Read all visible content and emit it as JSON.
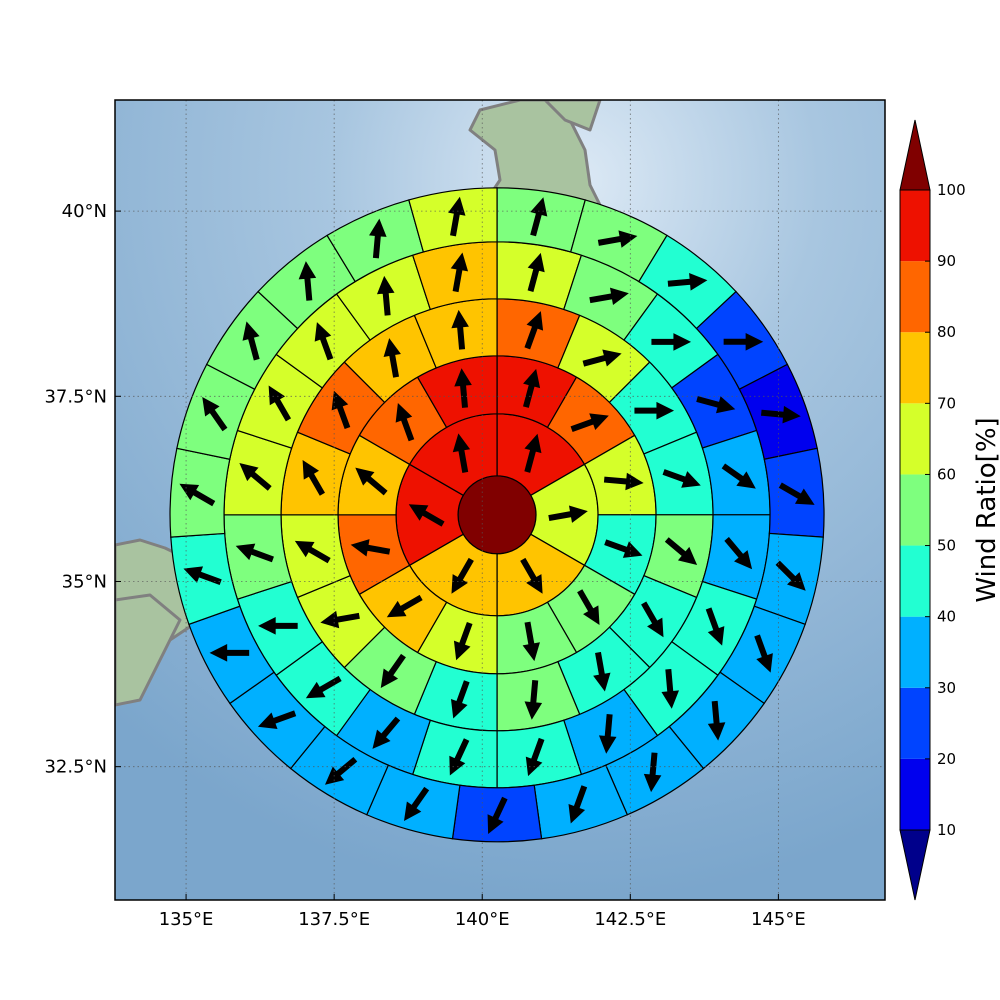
{
  "map": {
    "lon_range": [
      133.8,
      146.8
    ],
    "lat_range": [
      30.7,
      41.5
    ],
    "lon_ticks": [
      {
        "value": 135,
        "label": "135°E"
      },
      {
        "value": 137.5,
        "label": "137.5°E"
      },
      {
        "value": 140,
        "label": "140°E"
      },
      {
        "value": 142.5,
        "label": "142.5°E"
      },
      {
        "value": 145,
        "label": "145°E"
      }
    ],
    "lat_ticks": [
      {
        "value": 40,
        "label": "40°N"
      },
      {
        "value": 37.5,
        "label": "37.5°N"
      },
      {
        "value": 35,
        "label": "35°N"
      },
      {
        "value": 32.5,
        "label": "32.5°N"
      }
    ],
    "grid": true,
    "center": {
      "lon": 140.25,
      "lat": 35.9
    },
    "sea_color": "#8fb4d6",
    "land_color": "#a9c3a0",
    "coast_color": "#808080"
  },
  "colorbar": {
    "title": "Wind Ratio[%]",
    "levels": [
      10,
      20,
      30,
      40,
      50,
      60,
      70,
      80,
      90,
      100
    ],
    "colors": [
      "#0000ee",
      "#0044ff",
      "#00b0ff",
      "#22ffd2",
      "#7eff7e",
      "#d5ff2a",
      "#ffc400",
      "#ff6600",
      "#ee1100"
    ],
    "under_color": "#00008b",
    "over_color": "#800000",
    "extend": "both"
  },
  "wind_sectors": {
    "rings": [
      {
        "sectors": [
          100
        ]
      },
      {
        "sectors": [
          90,
          60,
          70,
          70,
          90,
          90
        ]
      },
      {
        "sectors": [
          90,
          80,
          60,
          40,
          50,
          50,
          60,
          70,
          80,
          70,
          80,
          90
        ]
      },
      {
        "sectors": [
          80,
          60,
          40,
          40,
          50,
          40,
          40,
          50,
          40,
          50,
          60,
          60,
          70,
          80,
          70,
          70
        ]
      },
      {
        "sectors": [
          60,
          50,
          40,
          20,
          30,
          30,
          40,
          40,
          30,
          40,
          40,
          30,
          40,
          40,
          50,
          60,
          60,
          60,
          60,
          70
        ]
      },
      {
        "sectors": [
          50,
          50,
          40,
          20,
          10,
          20,
          30,
          30,
          30,
          30,
          30,
          20,
          30,
          30,
          30,
          30,
          40,
          50,
          50,
          50,
          50,
          50,
          60
        ]
      }
    ],
    "arrows": [
      [
        10
      ],
      [
        15,
        80,
        150,
        210,
        300,
        350
      ],
      [
        15,
        70,
        95,
        110,
        150,
        170,
        200,
        240,
        280,
        310,
        340,
        355
      ],
      [
        20,
        75,
        90,
        110,
        130,
        150,
        170,
        185,
        200,
        215,
        260,
        300,
        330,
        340,
        350,
        355
      ],
      [
        15,
        80,
        90,
        105,
        125,
        140,
        160,
        175,
        185,
        200,
        205,
        220,
        240,
        270,
        290,
        310,
        330,
        340,
        355,
        10
      ],
      [
        15,
        80,
        85,
        90,
        95,
        120,
        135,
        160,
        175,
        185,
        200,
        205,
        215,
        230,
        250,
        270,
        290,
        300,
        325,
        345,
        355,
        5,
        10
      ]
    ]
  }
}
